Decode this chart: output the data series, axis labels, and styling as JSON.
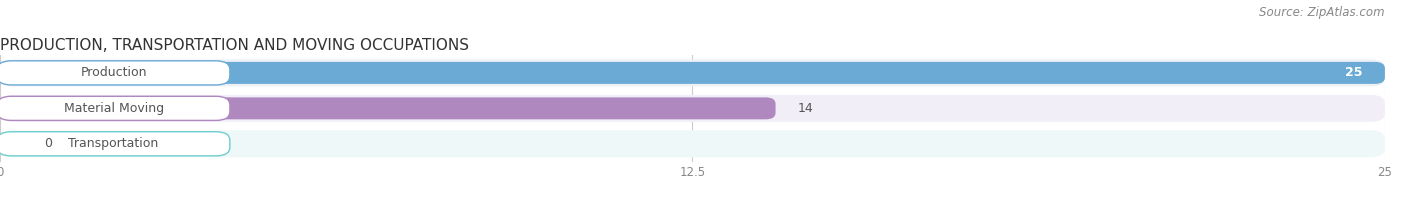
{
  "title": "PRODUCTION, TRANSPORTATION AND MOVING OCCUPATIONS",
  "source": "Source: ZipAtlas.com",
  "categories": [
    "Production",
    "Material Moving",
    "Transportation"
  ],
  "values": [
    25,
    14,
    0
  ],
  "bar_colors": [
    "#6aaad4",
    "#b088c0",
    "#6ecece"
  ],
  "row_bg_colors": [
    "#eef0f8",
    "#f2eef8",
    "#eef8f8"
  ],
  "xlim": [
    0,
    25
  ],
  "xticks": [
    0,
    12.5,
    25
  ],
  "figsize": [
    14.06,
    1.97
  ],
  "dpi": 100,
  "title_fontsize": 11,
  "label_fontsize": 9,
  "source_fontsize": 8.5,
  "bar_height": 0.62,
  "background_color": "#ffffff"
}
